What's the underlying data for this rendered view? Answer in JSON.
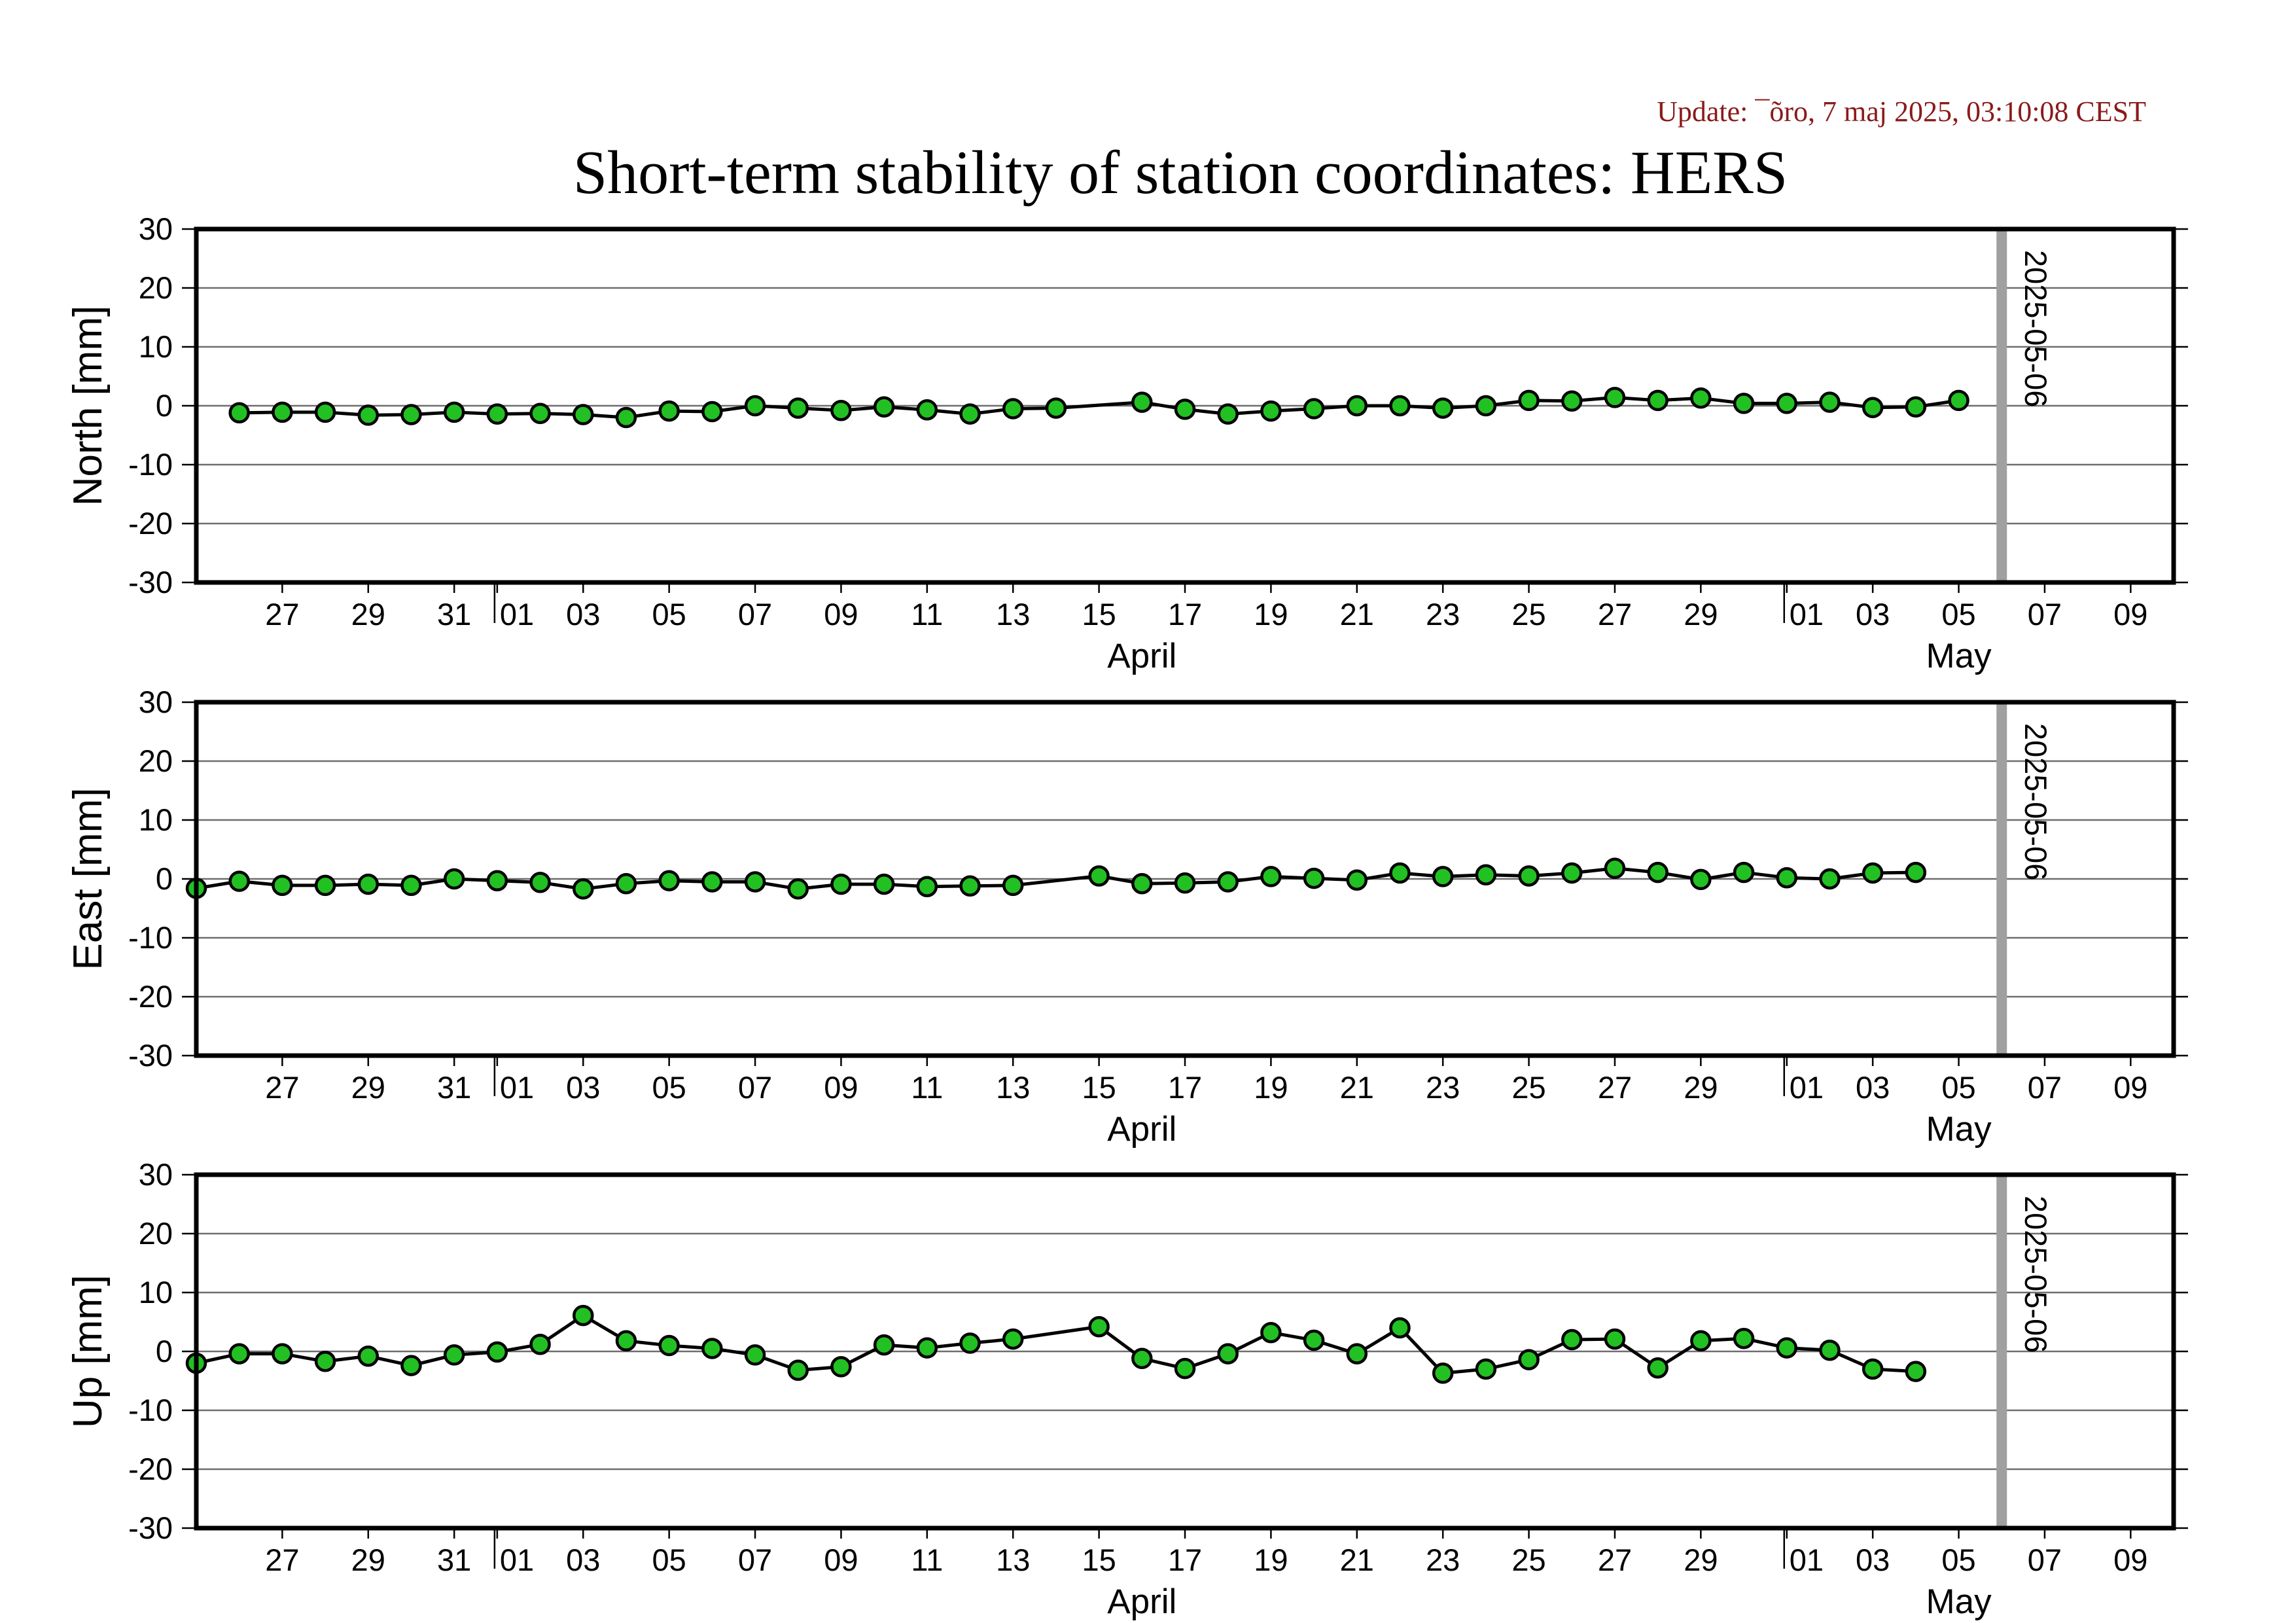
{
  "header": {
    "update_text": "Update: ¯õro, 7 maj 2025, 03:10:08 CEST",
    "title": "Short-term stability of station coordinates: HERS"
  },
  "colors": {
    "point_fill": "#22c022",
    "point_stroke": "#000000",
    "line": "#000000",
    "grid": "#6e6e6e",
    "marker_line": "#a0a0a0",
    "update_text": "#8b1a1a"
  },
  "chart_data": [
    {
      "type": "line",
      "ylabel": "North [mm]",
      "ylim": [
        -30,
        30
      ],
      "yticks": [
        30,
        20,
        10,
        0,
        -10,
        -20,
        -30
      ],
      "xlim": [
        "2025-03-25",
        "2025-05-10"
      ],
      "x_tick_labels": [
        "27",
        "29",
        "31",
        "01",
        "03",
        "05",
        "07",
        "09",
        "11",
        "13",
        "15",
        "17",
        "19",
        "21",
        "23",
        "25",
        "27",
        "29",
        "01",
        "03",
        "05",
        "07",
        "09"
      ],
      "x_tick_dates": [
        "2025-03-27",
        "2025-03-29",
        "2025-03-31",
        "2025-04-01",
        "2025-04-03",
        "2025-04-05",
        "2025-04-07",
        "2025-04-09",
        "2025-04-11",
        "2025-04-13",
        "2025-04-15",
        "2025-04-17",
        "2025-04-19",
        "2025-04-21",
        "2025-04-23",
        "2025-04-25",
        "2025-04-27",
        "2025-04-29",
        "2025-05-01",
        "2025-05-03",
        "2025-05-05",
        "2025-05-07",
        "2025-05-09"
      ],
      "month_labels": [
        {
          "label": "April",
          "date": "2025-04-16"
        },
        {
          "label": "May",
          "date": "2025-05-05"
        }
      ],
      "month_boundaries": [
        "2025-04-01",
        "2025-05-01"
      ],
      "marker": {
        "label": "2025-05-06",
        "date": "2025-05-06"
      },
      "grid": true,
      "x": [
        "2025-03-26",
        "2025-03-27",
        "2025-03-28",
        "2025-03-29",
        "2025-03-30",
        "2025-03-31",
        "2025-04-01",
        "2025-04-02",
        "2025-04-03",
        "2025-04-04",
        "2025-04-05",
        "2025-04-06",
        "2025-04-07",
        "2025-04-08",
        "2025-04-09",
        "2025-04-10",
        "2025-04-11",
        "2025-04-12",
        "2025-04-13",
        "2025-04-14",
        "2025-04-16",
        "2025-04-17",
        "2025-04-18",
        "2025-04-19",
        "2025-04-20",
        "2025-04-21",
        "2025-04-22",
        "2025-04-23",
        "2025-04-24",
        "2025-04-25",
        "2025-04-26",
        "2025-04-27",
        "2025-04-28",
        "2025-04-29",
        "2025-04-30",
        "2025-05-01",
        "2025-05-02",
        "2025-05-03",
        "2025-05-04",
        "2025-05-05"
      ],
      "y": [
        -1.2,
        -1.1,
        -1.1,
        -1.6,
        -1.5,
        -1.1,
        -1.4,
        -1.3,
        -1.5,
        -2.0,
        -0.9,
        -1.0,
        0.0,
        -0.4,
        -0.8,
        -0.2,
        -0.7,
        -1.4,
        -0.5,
        -0.4,
        0.6,
        -0.6,
        -1.4,
        -0.9,
        -0.5,
        0.0,
        0.0,
        -0.4,
        0.0,
        0.9,
        0.8,
        1.4,
        0.9,
        1.3,
        0.4,
        0.4,
        0.6,
        -0.3,
        -0.2,
        0.9
      ]
    },
    {
      "type": "line",
      "ylabel": "East [mm]",
      "ylim": [
        -30,
        30
      ],
      "yticks": [
        30,
        20,
        10,
        0,
        -10,
        -20,
        -30
      ],
      "xlim": [
        "2025-03-25",
        "2025-05-10"
      ],
      "x_tick_labels": [
        "27",
        "29",
        "31",
        "01",
        "03",
        "05",
        "07",
        "09",
        "11",
        "13",
        "15",
        "17",
        "19",
        "21",
        "23",
        "25",
        "27",
        "29",
        "01",
        "03",
        "05",
        "07",
        "09"
      ],
      "x_tick_dates": [
        "2025-03-27",
        "2025-03-29",
        "2025-03-31",
        "2025-04-01",
        "2025-04-03",
        "2025-04-05",
        "2025-04-07",
        "2025-04-09",
        "2025-04-11",
        "2025-04-13",
        "2025-04-15",
        "2025-04-17",
        "2025-04-19",
        "2025-04-21",
        "2025-04-23",
        "2025-04-25",
        "2025-04-27",
        "2025-04-29",
        "2025-05-01",
        "2025-05-03",
        "2025-05-05",
        "2025-05-07",
        "2025-05-09"
      ],
      "month_labels": [
        {
          "label": "April",
          "date": "2025-04-16"
        },
        {
          "label": "May",
          "date": "2025-05-05"
        }
      ],
      "month_boundaries": [
        "2025-04-01",
        "2025-05-01"
      ],
      "marker": {
        "label": "2025-05-06",
        "date": "2025-05-06"
      },
      "grid": true,
      "x": [
        "2025-03-25",
        "2025-03-26",
        "2025-03-27",
        "2025-03-28",
        "2025-03-29",
        "2025-03-30",
        "2025-03-31",
        "2025-04-01",
        "2025-04-02",
        "2025-04-03",
        "2025-04-04",
        "2025-04-05",
        "2025-04-06",
        "2025-04-07",
        "2025-04-08",
        "2025-04-09",
        "2025-04-10",
        "2025-04-11",
        "2025-04-12",
        "2025-04-13",
        "2025-04-15",
        "2025-04-16",
        "2025-04-17",
        "2025-04-18",
        "2025-04-19",
        "2025-04-20",
        "2025-04-21",
        "2025-04-22",
        "2025-04-23",
        "2025-04-24",
        "2025-04-25",
        "2025-04-26",
        "2025-04-27",
        "2025-04-28",
        "2025-04-29",
        "2025-04-30",
        "2025-05-01",
        "2025-05-02",
        "2025-05-03",
        "2025-05-04"
      ],
      "y": [
        -1.6,
        -0.4,
        -1.1,
        -1.1,
        -0.9,
        -1.1,
        0.0,
        -0.3,
        -0.6,
        -1.7,
        -0.8,
        -0.3,
        -0.5,
        -0.5,
        -1.7,
        -0.9,
        -0.9,
        -1.3,
        -1.2,
        -1.1,
        0.5,
        -0.8,
        -0.7,
        -0.5,
        0.4,
        0.1,
        -0.2,
        1.0,
        0.4,
        0.7,
        0.5,
        1.0,
        1.8,
        1.1,
        -0.1,
        1.1,
        0.2,
        0.0,
        1.0,
        1.1
      ]
    },
    {
      "type": "line",
      "ylabel": "Up [mm]",
      "ylim": [
        -30,
        30
      ],
      "yticks": [
        30,
        20,
        10,
        0,
        -10,
        -20,
        -30
      ],
      "xlim": [
        "2025-03-25",
        "2025-05-10"
      ],
      "x_tick_labels": [
        "27",
        "29",
        "31",
        "01",
        "03",
        "05",
        "07",
        "09",
        "11",
        "13",
        "15",
        "17",
        "19",
        "21",
        "23",
        "25",
        "27",
        "29",
        "01",
        "03",
        "05",
        "07",
        "09"
      ],
      "x_tick_dates": [
        "2025-03-27",
        "2025-03-29",
        "2025-03-31",
        "2025-04-01",
        "2025-04-03",
        "2025-04-05",
        "2025-04-07",
        "2025-04-09",
        "2025-04-11",
        "2025-04-13",
        "2025-04-15",
        "2025-04-17",
        "2025-04-19",
        "2025-04-21",
        "2025-04-23",
        "2025-04-25",
        "2025-04-27",
        "2025-04-29",
        "2025-05-01",
        "2025-05-03",
        "2025-05-05",
        "2025-05-07",
        "2025-05-09"
      ],
      "month_labels": [
        {
          "label": "April",
          "date": "2025-04-16"
        },
        {
          "label": "May",
          "date": "2025-05-05"
        }
      ],
      "month_boundaries": [
        "2025-04-01",
        "2025-05-01"
      ],
      "marker": {
        "label": "2025-05-06",
        "date": "2025-05-06"
      },
      "grid": true,
      "x": [
        "2025-03-25",
        "2025-03-26",
        "2025-03-27",
        "2025-03-28",
        "2025-03-29",
        "2025-03-30",
        "2025-03-31",
        "2025-04-01",
        "2025-04-02",
        "2025-04-03",
        "2025-04-04",
        "2025-04-05",
        "2025-04-06",
        "2025-04-07",
        "2025-04-08",
        "2025-04-09",
        "2025-04-10",
        "2025-04-11",
        "2025-04-12",
        "2025-04-13",
        "2025-04-15",
        "2025-04-16",
        "2025-04-17",
        "2025-04-18",
        "2025-04-19",
        "2025-04-20",
        "2025-04-21",
        "2025-04-22",
        "2025-04-23",
        "2025-04-24",
        "2025-04-25",
        "2025-04-26",
        "2025-04-27",
        "2025-04-28",
        "2025-04-29",
        "2025-04-30",
        "2025-05-01",
        "2025-05-02",
        "2025-05-03",
        "2025-05-04"
      ],
      "y": [
        -2.0,
        -0.4,
        -0.4,
        -1.7,
        -0.8,
        -2.4,
        -0.6,
        -0.1,
        1.2,
        6.1,
        1.8,
        1.0,
        0.5,
        -0.6,
        -3.2,
        -2.6,
        1.1,
        0.6,
        1.4,
        2.1,
        4.2,
        -1.2,
        -2.9,
        -0.4,
        3.2,
        1.9,
        -0.4,
        4.0,
        -3.7,
        -3.0,
        -1.4,
        2.0,
        2.1,
        -2.8,
        1.8,
        2.2,
        0.6,
        0.2,
        -3.0,
        -3.4
      ]
    }
  ]
}
